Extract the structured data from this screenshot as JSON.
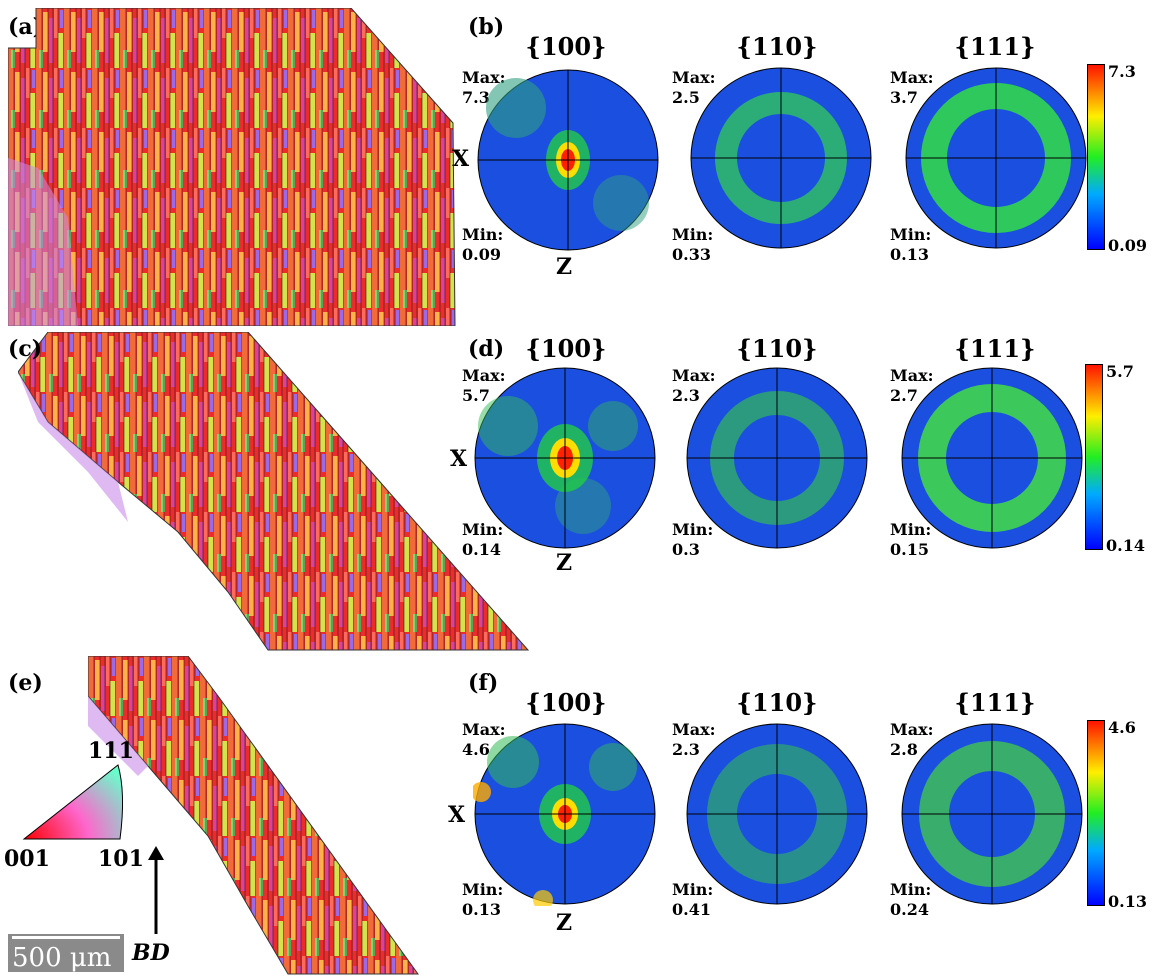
{
  "rows": [
    {
      "map_label": "(a)",
      "pf_label": "(b)",
      "axis_x": "X",
      "axis_z": "Z",
      "poles": [
        {
          "family": "{100}",
          "max_label": "Max:",
          "max": "7.3",
          "min_label": "Min:",
          "min": "0.09"
        },
        {
          "family": "{110}",
          "max_label": "Max:",
          "max": "2.5",
          "min_label": "Min:",
          "min": "0.33"
        },
        {
          "family": "{111}",
          "max_label": "Max:",
          "max": "3.7",
          "min_label": "Min:",
          "min": "0.13"
        }
      ],
      "colorbar": {
        "max": "7.3",
        "min": "0.09"
      }
    },
    {
      "map_label": "(c)",
      "pf_label": "(d)",
      "axis_x": "X",
      "axis_z": "Z",
      "poles": [
        {
          "family": "{100}",
          "max_label": "Max:",
          "max": "5.7",
          "min_label": "Min:",
          "min": "0.14"
        },
        {
          "family": "{110}",
          "max_label": "Max:",
          "max": "2.3",
          "min_label": "Min:",
          "min": "0.3"
        },
        {
          "family": "{111}",
          "max_label": "Max:",
          "max": "2.7",
          "min_label": "Min:",
          "min": "0.15"
        }
      ],
      "colorbar": {
        "max": "5.7",
        "min": "0.14"
      }
    },
    {
      "map_label": "(e)",
      "pf_label": "(f)",
      "axis_x": "X",
      "axis_z": "Z",
      "poles": [
        {
          "family": "{100}",
          "max_label": "Max:",
          "max": "4.6",
          "min_label": "Min:",
          "min": "0.13"
        },
        {
          "family": "{110}",
          "max_label": "Max:",
          "max": "2.3",
          "min_label": "Min:",
          "min": "0.41"
        },
        {
          "family": "{111}",
          "max_label": "Max:",
          "max": "2.8",
          "min_label": "Min:",
          "min": "0.24"
        }
      ],
      "colorbar": {
        "max": "4.6",
        "min": "0.13"
      }
    }
  ],
  "ipf_key": {
    "top": "111",
    "left": "001",
    "right": "101"
  },
  "scale_bar": "500 μm",
  "build_direction": "BD",
  "colors": {
    "low": "#1a1aff",
    "mid": "#33dd33",
    "high": "#ff2200"
  }
}
